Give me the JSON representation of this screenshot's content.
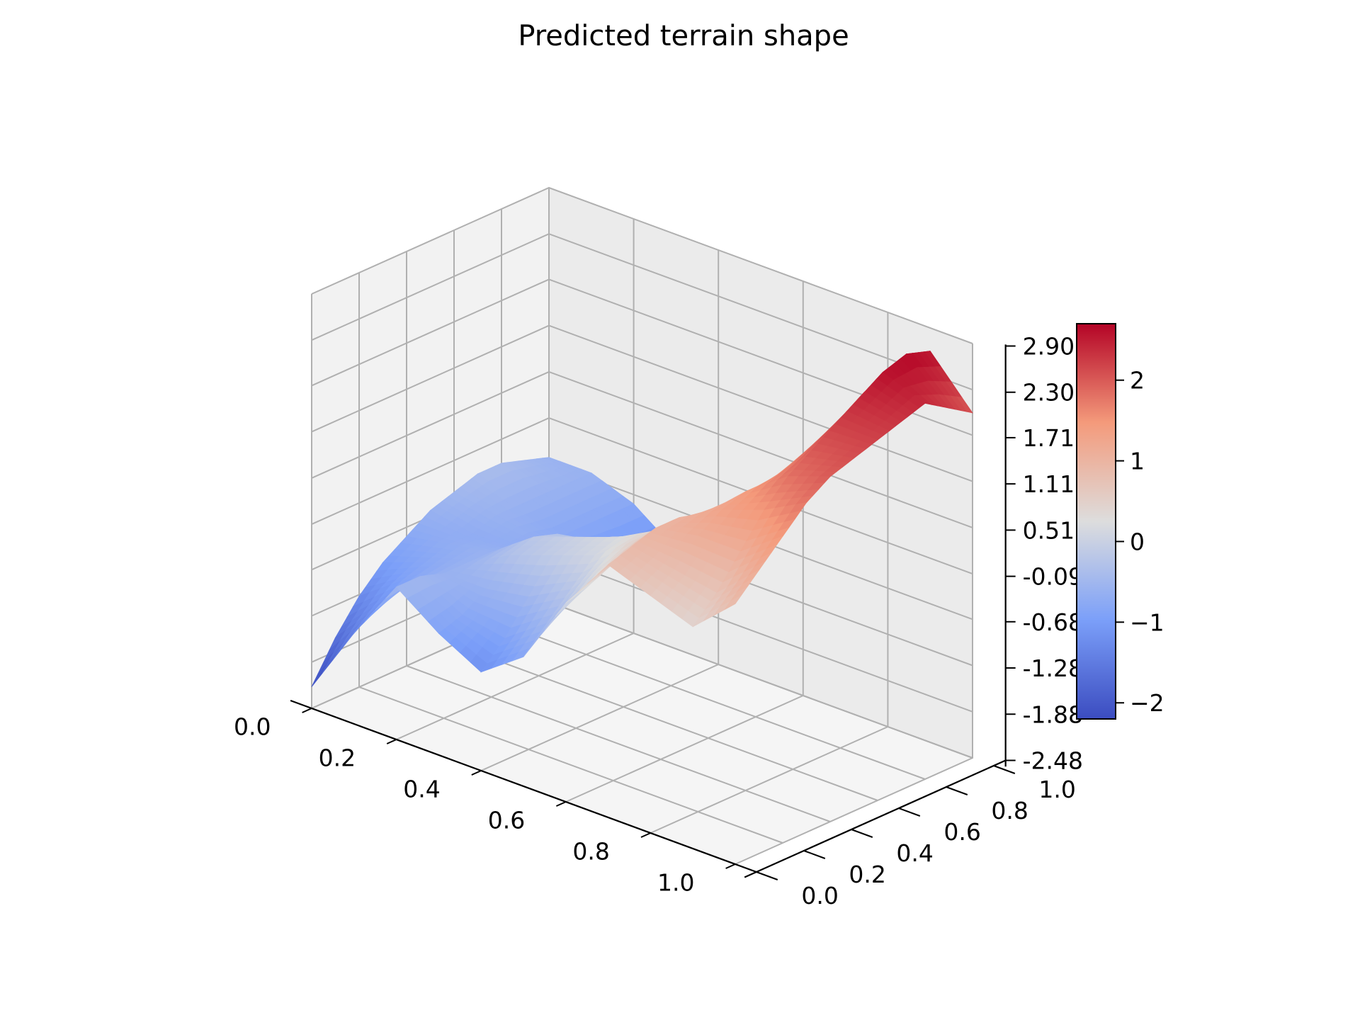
{
  "chart_data": {
    "type": "surface",
    "title": "Predicted terrain shape",
    "xlabel": "",
    "ylabel": "",
    "zlabel": "",
    "xlim": [
      0.0,
      1.0
    ],
    "ylim": [
      0.0,
      1.0
    ],
    "zlim": [
      -2.48,
      2.9
    ],
    "x_ticks": [
      "0.0",
      "0.2",
      "0.4",
      "0.6",
      "0.8",
      "1.0"
    ],
    "y_ticks": [
      "0.0",
      "0.2",
      "0.4",
      "0.6",
      "0.8",
      "1.0"
    ],
    "z_ticks": [
      "-2.48",
      "-1.88",
      "-1.28",
      "-0.68",
      "-0.09",
      "0.51",
      "1.11",
      "1.71",
      "2.30",
      "2.90"
    ],
    "grid": true,
    "colormap": "coolwarm",
    "colorbar": {
      "ticks": [
        "−2",
        "−1",
        "0",
        "1",
        "2"
      ],
      "tick_values": [
        -2,
        -1,
        0,
        1,
        2
      ],
      "range": [
        -2.2,
        2.7
      ]
    },
    "x_samples": [
      0.0,
      0.1,
      0.2,
      0.3,
      0.4,
      0.5,
      0.6,
      0.7,
      0.8,
      0.9,
      1.0
    ],
    "y_samples": [
      0.0,
      0.1,
      0.2,
      0.3,
      0.4,
      0.5,
      0.6,
      0.7,
      0.8,
      0.9,
      1.0
    ],
    "z_values": [
      [
        -2.2,
        -1.7,
        -1.3,
        -1.0,
        -0.8,
        -0.6,
        -0.5,
        -0.4,
        -0.4,
        -0.5,
        -0.6
      ],
      [
        -1.3,
        -1.1,
        -0.9,
        -0.8,
        -0.7,
        -0.7,
        -0.6,
        -0.6,
        -0.6,
        -0.6,
        -0.6
      ],
      [
        -0.5,
        -0.5,
        -0.6,
        -0.6,
        -0.6,
        -0.7,
        -0.7,
        -0.8,
        -0.8,
        -0.8,
        -0.8
      ],
      [
        -0.9,
        -0.8,
        -0.6,
        -0.3,
        -0.2,
        -0.3,
        -0.6,
        -0.9,
        -1.1,
        -1.2,
        -1.2
      ],
      [
        -1.2,
        -0.9,
        -0.5,
        -0.1,
        0.0,
        -0.2,
        -0.5,
        -0.8,
        -1.0,
        -1.0,
        -0.9
      ],
      [
        -0.8,
        -0.5,
        -0.2,
        0.1,
        0.2,
        0.1,
        -0.1,
        -0.3,
        -0.4,
        -0.4,
        -0.3
      ],
      [
        0.1,
        0.2,
        0.4,
        0.5,
        0.5,
        0.4,
        0.3,
        0.2,
        0.2,
        0.2,
        0.3
      ],
      [
        0.8,
        0.9,
        1.0,
        1.0,
        0.9,
        0.8,
        0.7,
        0.7,
        0.8,
        0.9,
        1.1
      ],
      [
        0.6,
        0.8,
        1.1,
        1.3,
        1.4,
        1.4,
        1.5,
        1.6,
        1.8,
        2.0,
        2.1
      ],
      [
        0.4,
        0.7,
        1.1,
        1.5,
        1.8,
        2.0,
        2.2,
        2.4,
        2.6,
        2.7,
        2.6
      ],
      [
        0.9,
        1.2,
        1.5,
        1.8,
        2.0,
        2.1,
        2.2,
        2.3,
        2.4,
        2.2,
        2.0
      ]
    ]
  }
}
